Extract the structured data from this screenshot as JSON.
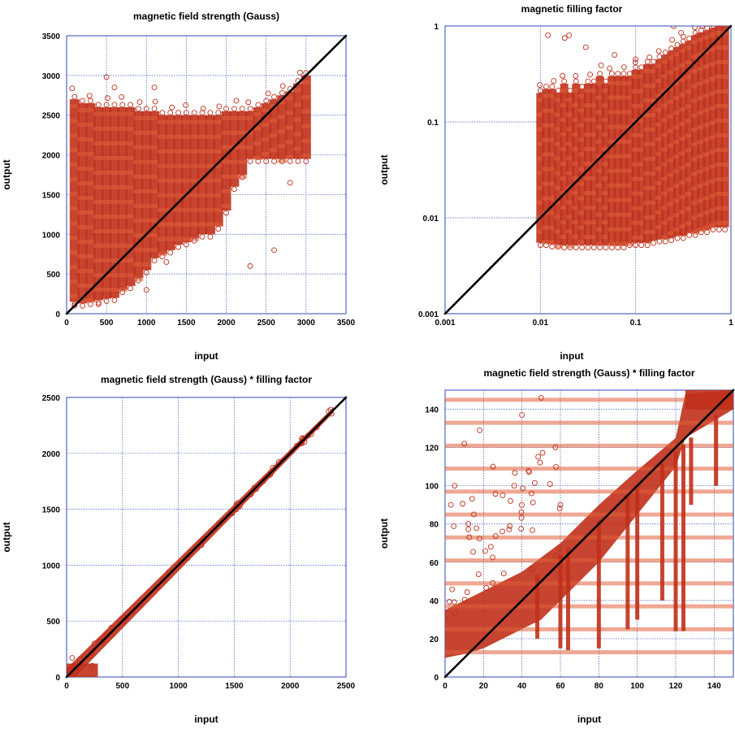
{
  "chart_data": [
    {
      "type": "scatter",
      "title": "magnetic field strength (Gauss)",
      "xlabel": "input",
      "ylabel": "output",
      "scale": "linear",
      "xlim": [
        0,
        3500
      ],
      "ylim": [
        0,
        3500
      ],
      "xticks": [
        0,
        500,
        1000,
        1500,
        2000,
        2500,
        3000,
        3500
      ],
      "yticks": [
        0,
        500,
        1000,
        1500,
        2000,
        2500,
        3000,
        3500
      ],
      "identity_line": true,
      "grid": true,
      "marker": "open-circle",
      "color": "#c0301a",
      "bands": {
        "x": [
          100,
          200,
          300,
          400,
          500,
          600,
          700,
          800,
          900,
          1000,
          1100,
          1200,
          1300,
          1400,
          1500,
          1600,
          1700,
          1800,
          1900,
          2000,
          2100,
          2200,
          2300,
          2400,
          2500,
          2600,
          2700,
          2800,
          2900,
          3000
        ],
        "ymin": [
          150,
          130,
          150,
          170,
          190,
          200,
          300,
          350,
          450,
          550,
          700,
          750,
          800,
          870,
          900,
          950,
          1000,
          1000,
          1100,
          1300,
          1600,
          1750,
          1950,
          1950,
          1950,
          1950,
          1950,
          1950,
          1950,
          1950
        ],
        "ymax": [
          2700,
          2650,
          2650,
          2600,
          2600,
          2600,
          2600,
          2600,
          2550,
          2550,
          2550,
          2500,
          2500,
          2500,
          2500,
          2500,
          2500,
          2500,
          2500,
          2550,
          2550,
          2550,
          2550,
          2600,
          2650,
          2700,
          2750,
          2800,
          2900,
          3000
        ]
      },
      "outliers": [
        [
          500,
          2980
        ],
        [
          100,
          100
        ],
        [
          400,
          120
        ],
        [
          1250,
          650
        ],
        [
          2300,
          600
        ],
        [
          2600,
          800
        ],
        [
          2800,
          1650
        ],
        [
          1000,
          300
        ],
        [
          1100,
          2850
        ],
        [
          600,
          2850
        ]
      ]
    },
    {
      "type": "scatter",
      "title": "magnetic filling factor",
      "xlabel": "input",
      "ylabel": "output",
      "scale": "log",
      "xlim": [
        0.001,
        1
      ],
      "ylim": [
        0.001,
        1
      ],
      "xticks": [
        0.001,
        0.01,
        0.1,
        1
      ],
      "yticks": [
        0.001,
        0.01,
        0.1,
        1
      ],
      "xtick_labels": [
        "0.001",
        "0.01",
        "0.1",
        "1"
      ],
      "ytick_labels": [
        "0.001",
        "0.01",
        "0.1",
        "1"
      ],
      "identity_line": true,
      "grid": true,
      "marker": "open-circle",
      "color": "#c0301a",
      "bands": {
        "x": [
          0.01,
          0.0115,
          0.0133,
          0.0154,
          0.0178,
          0.0205,
          0.0237,
          0.0274,
          0.0316,
          0.0365,
          0.0422,
          0.0487,
          0.0562,
          0.065,
          0.075,
          0.0866,
          0.1,
          0.115,
          0.133,
          0.154,
          0.178,
          0.205,
          0.237,
          0.274,
          0.316,
          0.365,
          0.422,
          0.487,
          0.562,
          0.65,
          0.75,
          0.866
        ],
        "ymin": [
          0.0055,
          0.0055,
          0.0053,
          0.0053,
          0.0052,
          0.0052,
          0.0052,
          0.0052,
          0.0052,
          0.0052,
          0.0052,
          0.0052,
          0.0052,
          0.0052,
          0.0052,
          0.0055,
          0.0055,
          0.0055,
          0.0055,
          0.0058,
          0.006,
          0.006,
          0.0062,
          0.0065,
          0.0065,
          0.007,
          0.007,
          0.0075,
          0.0075,
          0.008,
          0.008,
          0.008
        ],
        "ymax": [
          0.2,
          0.22,
          0.22,
          0.2,
          0.25,
          0.2,
          0.25,
          0.22,
          0.25,
          0.25,
          0.3,
          0.25,
          0.3,
          0.3,
          0.3,
          0.3,
          0.35,
          0.35,
          0.4,
          0.4,
          0.45,
          0.5,
          0.55,
          0.6,
          0.65,
          0.7,
          0.8,
          0.85,
          0.9,
          0.95,
          1,
          1
        ]
      },
      "outliers": [
        [
          0.012,
          0.8
        ],
        [
          0.018,
          0.75
        ],
        [
          0.02,
          0.8
        ],
        [
          0.03,
          0.6
        ],
        [
          0.06,
          0.5
        ],
        [
          0.1,
          0.45
        ],
        [
          0.25,
          1
        ],
        [
          0.3,
          0.85
        ],
        [
          0.45,
          0.8
        ],
        [
          0.5,
          1
        ]
      ]
    },
    {
      "type": "scatter",
      "title": "magnetic field strength (Gauss) * filling factor",
      "xlabel": "input",
      "ylabel": "output",
      "scale": "linear",
      "xlim": [
        0,
        2500
      ],
      "ylim": [
        0,
        2500
      ],
      "xticks": [
        0,
        500,
        1000,
        1500,
        2000,
        2500
      ],
      "yticks": [
        0,
        500,
        1000,
        1500,
        2000,
        2500
      ],
      "identity_line": true,
      "grid": true,
      "marker": "open-circle",
      "color": "#c0301a",
      "spread": 25,
      "outliers": [
        [
          50,
          170
        ],
        [
          120,
          160
        ],
        [
          250,
          300
        ],
        [
          230,
          100
        ],
        [
          30,
          60
        ],
        [
          400,
          440
        ]
      ]
    },
    {
      "type": "scatter",
      "title": "magnetic field strength (Gauss) * filling factor",
      "xlabel": "input",
      "ylabel": "output",
      "scale": "linear",
      "xlim": [
        0,
        150
      ],
      "ylim": [
        0,
        150
      ],
      "xticks": [
        0,
        20,
        40,
        60,
        80,
        100,
        120,
        140
      ],
      "yticks": [
        0,
        20,
        40,
        60,
        80,
        100,
        120,
        140
      ],
      "identity_line": true,
      "grid": true,
      "marker": "open-circle",
      "color": "#c0301a",
      "upper_edge": [
        [
          0,
          35
        ],
        [
          20,
          45
        ],
        [
          40,
          55
        ],
        [
          60,
          70
        ],
        [
          80,
          90
        ],
        [
          100,
          108
        ],
        [
          120,
          125
        ],
        [
          125,
          148
        ],
        [
          150,
          150
        ]
      ],
      "lower_edge": [
        [
          0,
          10
        ],
        [
          10,
          12
        ],
        [
          20,
          15
        ],
        [
          40,
          25
        ],
        [
          50,
          30
        ],
        [
          60,
          40
        ],
        [
          80,
          60
        ],
        [
          100,
          85
        ],
        [
          120,
          110
        ],
        [
          125,
          125
        ],
        [
          150,
          140
        ]
      ],
      "spikes": [
        [
          48,
          20
        ],
        [
          60,
          15
        ],
        [
          64,
          14
        ],
        [
          80,
          15
        ],
        [
          95,
          25
        ],
        [
          100,
          30
        ],
        [
          113,
          40
        ],
        [
          120,
          24
        ],
        [
          124,
          24
        ],
        [
          128,
          90
        ],
        [
          141,
          100
        ]
      ],
      "outliers": [
        [
          3,
          90
        ],
        [
          5,
          100
        ],
        [
          10,
          122
        ],
        [
          18,
          129
        ],
        [
          25,
          110
        ],
        [
          30,
          95
        ],
        [
          40,
          137
        ],
        [
          50,
          146
        ],
        [
          36,
          100
        ],
        [
          15,
          85
        ],
        [
          45,
          96
        ],
        [
          60,
          90
        ]
      ]
    }
  ]
}
